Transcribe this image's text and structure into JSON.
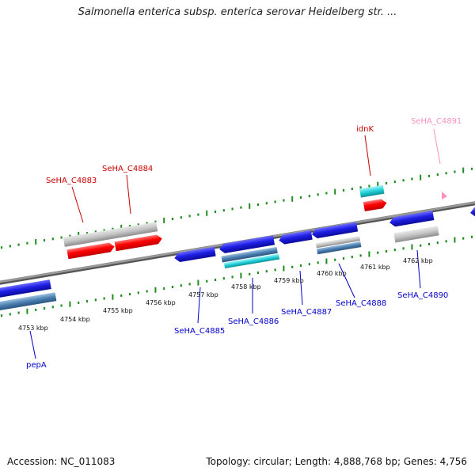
{
  "header": {
    "title": "Salmonella enterica subsp. enterica serovar Heidelberg str. ..."
  },
  "footer": {
    "accession": "Accession: NC_011083",
    "topology": "Topology: circular; Length: 4,888,768 bp; Genes: 4,756"
  },
  "colors": {
    "backbone": "#808080",
    "tick": "#1e8c1e",
    "forward_gene": "#ff0000",
    "reverse_gene": "#1f1fe6",
    "steelblue": "#4a7fb0",
    "cyan": "#20d0d8",
    "gray_feature": "#c0c0c0",
    "pink": "#ff90c0"
  },
  "axis": {
    "tick_labels": [
      "4753 kbp",
      "4754 kbp",
      "4755 kbp",
      "4756 kbp",
      "4757 kbp",
      "4758 kbp",
      "4759 kbp",
      "4760 kbp",
      "4761 kbp",
      "4762 kbp"
    ]
  },
  "genes": {
    "top": [
      {
        "name": "SeHA_C4883",
        "color": "#cc0000"
      },
      {
        "name": "SeHA_C4884",
        "color": "#cc0000"
      },
      {
        "name": "idnK",
        "color": "#cc0000"
      },
      {
        "name": "SeHA_C4891",
        "color": "#ff90c0"
      }
    ],
    "bottom": [
      {
        "name": "pepA",
        "color": "#0000cc"
      },
      {
        "name": "SeHA_C4885",
        "color": "#0000cc"
      },
      {
        "name": "SeHA_C4886",
        "color": "#0000cc"
      },
      {
        "name": "SeHA_C4887",
        "color": "#0000cc"
      },
      {
        "name": "SeHA_C4888",
        "color": "#0000cc"
      },
      {
        "name": "SeHA_C4890",
        "color": "#0000cc"
      }
    ]
  }
}
